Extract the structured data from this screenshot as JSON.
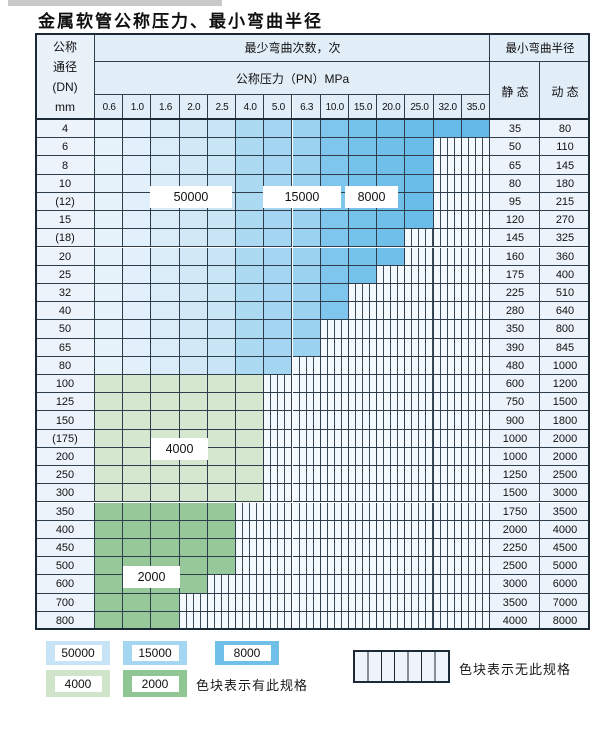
{
  "title": "金属软管公称压力、最小弯曲半径",
  "header": {
    "dn_lines": [
      "公称",
      "通径",
      "(DN)",
      "mm"
    ],
    "bend_times": "最少弯曲次数，次",
    "pressure": "公称压力（PN）MPa",
    "radius": "最小弯曲半径",
    "static": "静 态",
    "dynamic": "动 态"
  },
  "pressure_columns": [
    "0.6",
    "1.0",
    "1.6",
    "2.0",
    "2.5",
    "4.0",
    "5.0",
    "6.3",
    "10.0",
    "15.0",
    "20.0",
    "25.0",
    "32.0",
    "35.0"
  ],
  "rows": [
    {
      "dn": "4",
      "group": "blue",
      "last_col": 13,
      "static": "35",
      "dynamic": "80"
    },
    {
      "dn": "6",
      "group": "blue",
      "last_col": 11,
      "static": "50",
      "dynamic": "110"
    },
    {
      "dn": "8",
      "group": "blue",
      "last_col": 11,
      "static": "65",
      "dynamic": "145"
    },
    {
      "dn": "10",
      "group": "blue",
      "last_col": 11,
      "static": "80",
      "dynamic": "180"
    },
    {
      "dn": "(12)",
      "group": "blue",
      "last_col": 11,
      "static": "95",
      "dynamic": "215"
    },
    {
      "dn": "15",
      "group": "blue",
      "last_col": 11,
      "static": "120",
      "dynamic": "270"
    },
    {
      "dn": "(18)",
      "group": "blue",
      "last_col": 10,
      "static": "145",
      "dynamic": "325"
    },
    {
      "dn": "20",
      "group": "blue",
      "last_col": 10,
      "static": "160",
      "dynamic": "360"
    },
    {
      "dn": "25",
      "group": "blue",
      "last_col": 9,
      "static": "175",
      "dynamic": "400"
    },
    {
      "dn": "32",
      "group": "blue",
      "last_col": 8,
      "static": "225",
      "dynamic": "510"
    },
    {
      "dn": "40",
      "group": "blue",
      "last_col": 8,
      "static": "280",
      "dynamic": "640"
    },
    {
      "dn": "50",
      "group": "blue",
      "last_col": 7,
      "static": "350",
      "dynamic": "800"
    },
    {
      "dn": "65",
      "group": "blue",
      "last_col": 7,
      "static": "390",
      "dynamic": "845"
    },
    {
      "dn": "80",
      "group": "blue",
      "last_col": 6,
      "static": "480",
      "dynamic": "1000"
    },
    {
      "dn": "100",
      "group": "green4000",
      "last_col": 5,
      "static": "600",
      "dynamic": "1200"
    },
    {
      "dn": "125",
      "group": "green4000",
      "last_col": 5,
      "static": "750",
      "dynamic": "1500"
    },
    {
      "dn": "150",
      "group": "green4000",
      "last_col": 5,
      "static": "900",
      "dynamic": "1800"
    },
    {
      "dn": "(175)",
      "group": "green4000",
      "last_col": 5,
      "static": "1000",
      "dynamic": "2000"
    },
    {
      "dn": "200",
      "group": "green4000",
      "last_col": 5,
      "static": "1000",
      "dynamic": "2000"
    },
    {
      "dn": "250",
      "group": "green4000",
      "last_col": 5,
      "static": "1250",
      "dynamic": "2500"
    },
    {
      "dn": "300",
      "group": "green4000",
      "last_col": 5,
      "static": "1500",
      "dynamic": "3000"
    },
    {
      "dn": "350",
      "group": "green2000",
      "last_col": 4,
      "static": "1750",
      "dynamic": "3500"
    },
    {
      "dn": "400",
      "group": "green2000",
      "last_col": 4,
      "static": "2000",
      "dynamic": "4000"
    },
    {
      "dn": "450",
      "group": "green2000",
      "last_col": 4,
      "static": "2250",
      "dynamic": "4500"
    },
    {
      "dn": "500",
      "group": "green2000",
      "last_col": 4,
      "static": "2500",
      "dynamic": "5000"
    },
    {
      "dn": "600",
      "group": "green2000",
      "last_col": 3,
      "static": "3000",
      "dynamic": "6000"
    },
    {
      "dn": "700",
      "group": "green2000",
      "last_col": 2,
      "static": "3500",
      "dynamic": "7000"
    },
    {
      "dn": "800",
      "group": "green2000",
      "last_col": 2,
      "static": "4000",
      "dynamic": "8000"
    }
  ],
  "colors": {
    "blue_column_shades": [
      "#e7f3fb",
      "#e1f0fa",
      "#daecf8",
      "#d2e8f7",
      "#c9e4f5",
      "#addaf3",
      "#a4d6f1",
      "#9bd2ef",
      "#7ec6ed",
      "#75c2eb",
      "#6fbfe9",
      "#6abde9",
      "#66bbe8",
      "#63b9e7"
    ],
    "green4000": "#d5e7cf",
    "green2000": "#96c899",
    "grid_line": "#2f3e4c",
    "outer_border": "#1c2936"
  },
  "overlay_labels": [
    "50000",
    "15000",
    "8000",
    "4000",
    "2000"
  ],
  "legend": {
    "swatches": [
      {
        "label": "50000",
        "color": "#c7e4f6"
      },
      {
        "label": "15000",
        "color": "#a4d6f1"
      },
      {
        "label": "8000",
        "color": "#6fbfe9"
      },
      {
        "label": "4000",
        "color": "#d0e4ca"
      },
      {
        "label": "2000",
        "color": "#8fc694"
      }
    ],
    "available_text": "色块表示有此规格",
    "unavailable_text": "色块表示无此规格"
  },
  "chart_data": {
    "type": "heatmap",
    "title": "金属软管公称压力、最小弯曲半径",
    "x_label": "公称压力（PN）MPa",
    "x_ticks": [
      0.6,
      1.0,
      1.6,
      2.0,
      2.5,
      4.0,
      5.0,
      6.3,
      10.0,
      15.0,
      20.0,
      25.0,
      32.0,
      35.0
    ],
    "y_label": "公称通径（DN）mm",
    "y_ticks": [
      "4",
      "6",
      "8",
      "10",
      "(12)",
      "15",
      "(18)",
      "20",
      "25",
      "32",
      "40",
      "50",
      "65",
      "80",
      "100",
      "125",
      "150",
      "(175)",
      "200",
      "250",
      "300",
      "350",
      "400",
      "450",
      "500",
      "600",
      "700",
      "800"
    ],
    "cell_meaning": "色块=有此规格（色深表示最少弯曲次数）；竖线格=无此规格",
    "max_available_pressure_mpa": [
      35.0,
      25.0,
      25.0,
      25.0,
      25.0,
      25.0,
      20.0,
      20.0,
      15.0,
      10.0,
      10.0,
      6.3,
      6.3,
      5.0,
      4.0,
      4.0,
      4.0,
      4.0,
      4.0,
      4.0,
      4.0,
      2.5,
      2.5,
      2.5,
      2.5,
      2.0,
      1.6,
      1.6
    ],
    "bend_cycles_bands": {
      "dn_4_to_80": {
        "pn_0.6_to_2.5": 50000,
        "pn_4.0_to_6.3": 15000,
        "pn_10.0_to_35.0": 8000
      },
      "dn_100_to_300": 4000,
      "dn_350_to_800": 2000
    },
    "series": [
      {
        "name": "静态 最小弯曲半径",
        "values": [
          35,
          50,
          65,
          80,
          95,
          120,
          145,
          160,
          175,
          225,
          280,
          350,
          390,
          480,
          600,
          750,
          900,
          1000,
          1000,
          1250,
          1500,
          1750,
          2000,
          2250,
          2500,
          3000,
          3500,
          4000
        ]
      },
      {
        "name": "动态 最小弯曲半径",
        "values": [
          80,
          110,
          145,
          180,
          215,
          270,
          325,
          360,
          400,
          510,
          640,
          800,
          845,
          1000,
          1200,
          1500,
          1800,
          2000,
          2000,
          2500,
          3000,
          3500,
          4000,
          4500,
          5000,
          6000,
          7000,
          8000
        ]
      }
    ]
  }
}
